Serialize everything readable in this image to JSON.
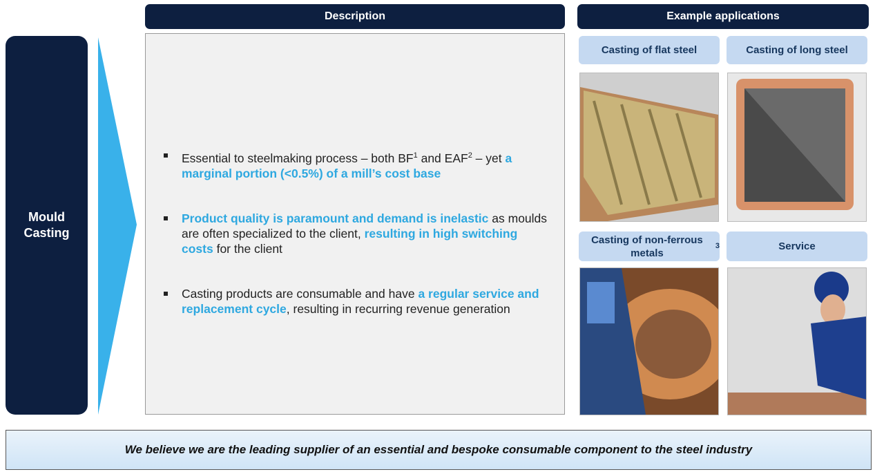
{
  "segment_label": "Mould Casting",
  "description": {
    "header": "Description",
    "bullets": [
      {
        "segments": [
          {
            "text": "Essential to steelmaking process – both BF",
            "emphasis": false
          },
          {
            "text": "1",
            "superscript": true
          },
          {
            "text": " and EAF",
            "emphasis": false
          },
          {
            "text": "2",
            "superscript": true
          },
          {
            "text": " – yet ",
            "emphasis": false
          },
          {
            "text": "a marginal portion (<0.5%) of a mill’s cost base",
            "emphasis": true
          }
        ]
      },
      {
        "segments": [
          {
            "text": "Product quality is paramount and demand is inelastic",
            "emphasis": true
          },
          {
            "text": " as moulds are often specialized to the client, ",
            "emphasis": false
          },
          {
            "text": "resulting in high switching costs",
            "emphasis": true
          },
          {
            "text": " for the client",
            "emphasis": false
          }
        ]
      },
      {
        "segments": [
          {
            "text": "Casting products are consumable and have ",
            "emphasis": false
          },
          {
            "text": "a regular service and replacement cycle",
            "emphasis": true
          },
          {
            "text": ", resulting in recurring revenue generation",
            "emphasis": false
          }
        ]
      }
    ]
  },
  "applications": {
    "header": "Example applications",
    "items": [
      {
        "label": "Casting of flat steel"
      },
      {
        "label": "Casting of long steel"
      },
      {
        "label": "Casting of non-ferrous metals",
        "superscript": "3"
      },
      {
        "label": "Service"
      }
    ]
  },
  "footer": "We believe we are the leading supplier of an essential and bespoke consumable component to the steel industry"
}
